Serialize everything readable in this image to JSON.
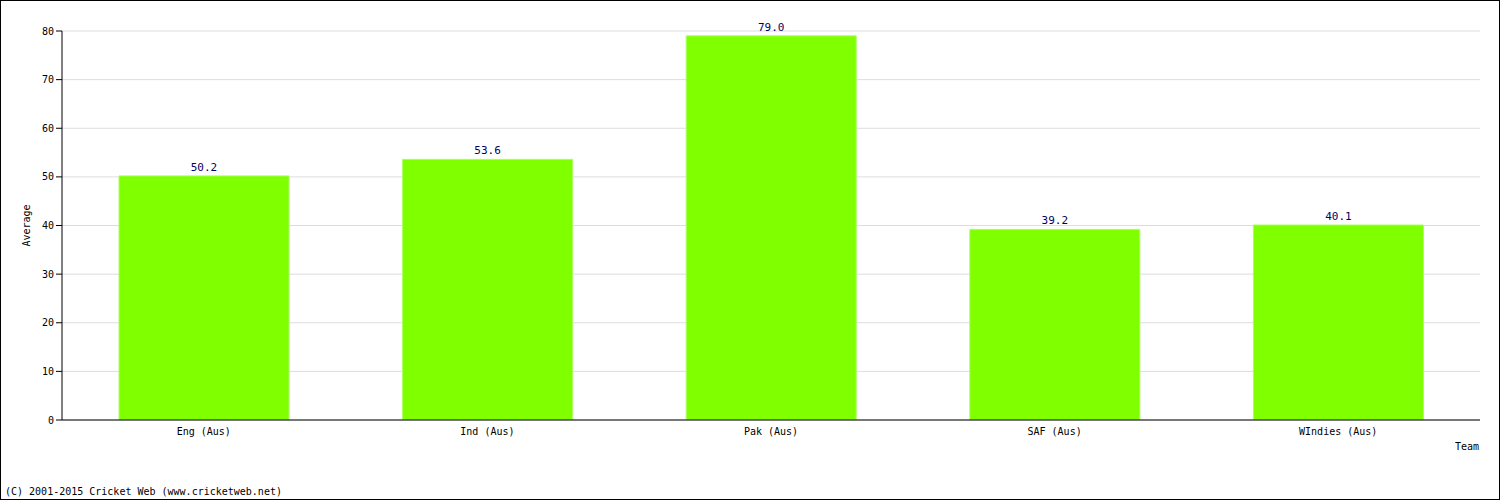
{
  "chart_data": {
    "type": "bar",
    "categories": [
      "Eng (Aus)",
      "Ind (Aus)",
      "Pak (Aus)",
      "SAF (Aus)",
      "WIndies (Aus)"
    ],
    "values": [
      50.2,
      53.6,
      79.0,
      39.2,
      40.1
    ],
    "value_labels": [
      "50.2",
      "53.6",
      "79.0",
      "39.2",
      "40.1"
    ],
    "color": "#80ff00",
    "ylim": [
      0,
      80
    ],
    "yticks": [
      0,
      10,
      20,
      30,
      40,
      50,
      60,
      70,
      80
    ],
    "grid": true,
    "data_labels": true,
    "x_label": "Team",
    "y_label": "Average",
    "annotations": [
      "(C) 2001-2015 Cricket Web (www.cricketweb.net)"
    ]
  }
}
